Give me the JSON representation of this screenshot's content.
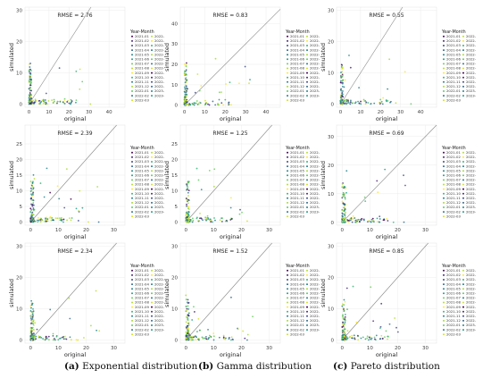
{
  "figure": {
    "captions": [
      {
        "label": "(a)",
        "text": "Exponential distribution"
      },
      {
        "label": "(b)",
        "text": "Gamma distribution"
      },
      {
        "label": "(c)",
        "text": "Pareto distribution"
      }
    ]
  },
  "legend": {
    "title": "Year-Month",
    "col1": [
      "2021-01",
      "2021-02",
      "2021-03",
      "2021-04",
      "2021-05",
      "2021-06",
      "2021-07",
      "2021-08",
      "2021-09",
      "2021-10",
      "2021-11",
      "2021-12",
      "2022-01",
      "2022-02",
      "2022-03"
    ],
    "col2": [
      "2022-",
      "2022-",
      "2022-",
      "2022-",
      "2022-",
      "2022-",
      "2022-",
      "2022-",
      "2022-",
      "2022-",
      "2022-",
      "2022-",
      "2023-",
      "2023-",
      ""
    ]
  },
  "palette": [
    "#440154",
    "#482677",
    "#3f4a8a",
    "#31688e",
    "#26838f",
    "#1f9d8a",
    "#6cce5a",
    "#b6de2b",
    "#fee825",
    "#35b779",
    "#277f8e",
    "#a5db36",
    "#5ec962",
    "#2a788e",
    "#d2e21b"
  ],
  "chart_data": [
    {
      "type": "scatter",
      "id": "exp-1",
      "title": "RMSE = 2.76",
      "xlabel": "original",
      "ylabel": "simulated",
      "xlim": [
        -2,
        48
      ],
      "ylim": [
        -1,
        31
      ],
      "xticks": [
        0,
        10,
        20,
        30,
        40
      ],
      "yticks": [
        0,
        10,
        20,
        30
      ],
      "grid": true,
      "diagonal": true,
      "legend_position": "right",
      "seed": 11
    },
    {
      "type": "scatter",
      "id": "gamma-1",
      "title": "RMSE = 0.83",
      "xlabel": "original",
      "ylabel": "simulated",
      "xlim": [
        -2,
        47
      ],
      "ylim": [
        -1,
        48
      ],
      "xticks": [
        0,
        10,
        20,
        30,
        40
      ],
      "yticks": [
        0,
        10,
        20,
        30,
        40
      ],
      "grid": true,
      "diagonal": true,
      "legend_position": "right",
      "seed": 23
    },
    {
      "type": "scatter",
      "id": "pareto-1",
      "title": "RMSE = 0.55",
      "xlabel": "original",
      "ylabel": "simulated",
      "xlim": [
        -2,
        48
      ],
      "ylim": [
        -1,
        31
      ],
      "xticks": [
        0,
        10,
        20,
        30,
        40
      ],
      "yticks": [
        0,
        10,
        20,
        30
      ],
      "grid": true,
      "diagonal": true,
      "legend_position": "right",
      "seed": 37
    },
    {
      "type": "scatter",
      "id": "exp-2",
      "title": "RMSE = 2.39",
      "xlabel": "original",
      "ylabel": "simulated",
      "xlim": [
        -2,
        34
      ],
      "ylim": [
        -1,
        31
      ],
      "xticks": [
        0,
        10,
        20,
        30
      ],
      "yticks": [
        0,
        5,
        10,
        15,
        20,
        25
      ],
      "grid": true,
      "diagonal": true,
      "legend_position": "right",
      "seed": 41
    },
    {
      "type": "scatter",
      "id": "gamma-2",
      "title": "RMSE = 1.25",
      "xlabel": "original",
      "ylabel": "simulated",
      "xlim": [
        -2,
        34
      ],
      "ylim": [
        -1,
        31
      ],
      "xticks": [
        0,
        10,
        20,
        30
      ],
      "yticks": [
        0,
        5,
        10,
        15,
        20,
        25
      ],
      "grid": true,
      "diagonal": true,
      "legend_position": "right",
      "seed": 53
    },
    {
      "type": "scatter",
      "id": "pareto-2",
      "title": "RMSE = 0.69",
      "xlabel": "original",
      "ylabel": "simulated",
      "xlim": [
        -2,
        34
      ],
      "ylim": [
        -1,
        34
      ],
      "xticks": [
        0,
        10,
        20,
        30
      ],
      "yticks": [
        0,
        10,
        20,
        30
      ],
      "grid": true,
      "diagonal": true,
      "legend_position": "right",
      "seed": 67
    },
    {
      "type": "scatter",
      "id": "exp-3",
      "title": "RMSE = 2.34",
      "xlabel": "original",
      "ylabel": "simulated",
      "xlim": [
        -2,
        34
      ],
      "ylim": [
        -1,
        31
      ],
      "xticks": [
        0,
        10,
        20,
        30
      ],
      "yticks": [
        0,
        10,
        20,
        30
      ],
      "grid": true,
      "diagonal": true,
      "legend_position": "right",
      "seed": 71
    },
    {
      "type": "scatter",
      "id": "gamma-3",
      "title": "RMSE = 1.52",
      "xlabel": "original",
      "ylabel": "simulated",
      "xlim": [
        -2,
        34
      ],
      "ylim": [
        -1,
        31
      ],
      "xticks": [
        0,
        10,
        20,
        30
      ],
      "yticks": [
        0,
        10,
        20,
        30
      ],
      "grid": true,
      "diagonal": true,
      "legend_position": "right",
      "seed": 83
    },
    {
      "type": "scatter",
      "id": "pareto-3",
      "title": "RMSE = 0.85",
      "xlabel": "original",
      "ylabel": "simulated",
      "xlim": [
        -2,
        34
      ],
      "ylim": [
        -1,
        31
      ],
      "xticks": [
        0,
        10,
        20,
        30
      ],
      "yticks": [
        0,
        10,
        20,
        30
      ],
      "grid": true,
      "diagonal": true,
      "legend_position": "right",
      "seed": 97
    }
  ]
}
